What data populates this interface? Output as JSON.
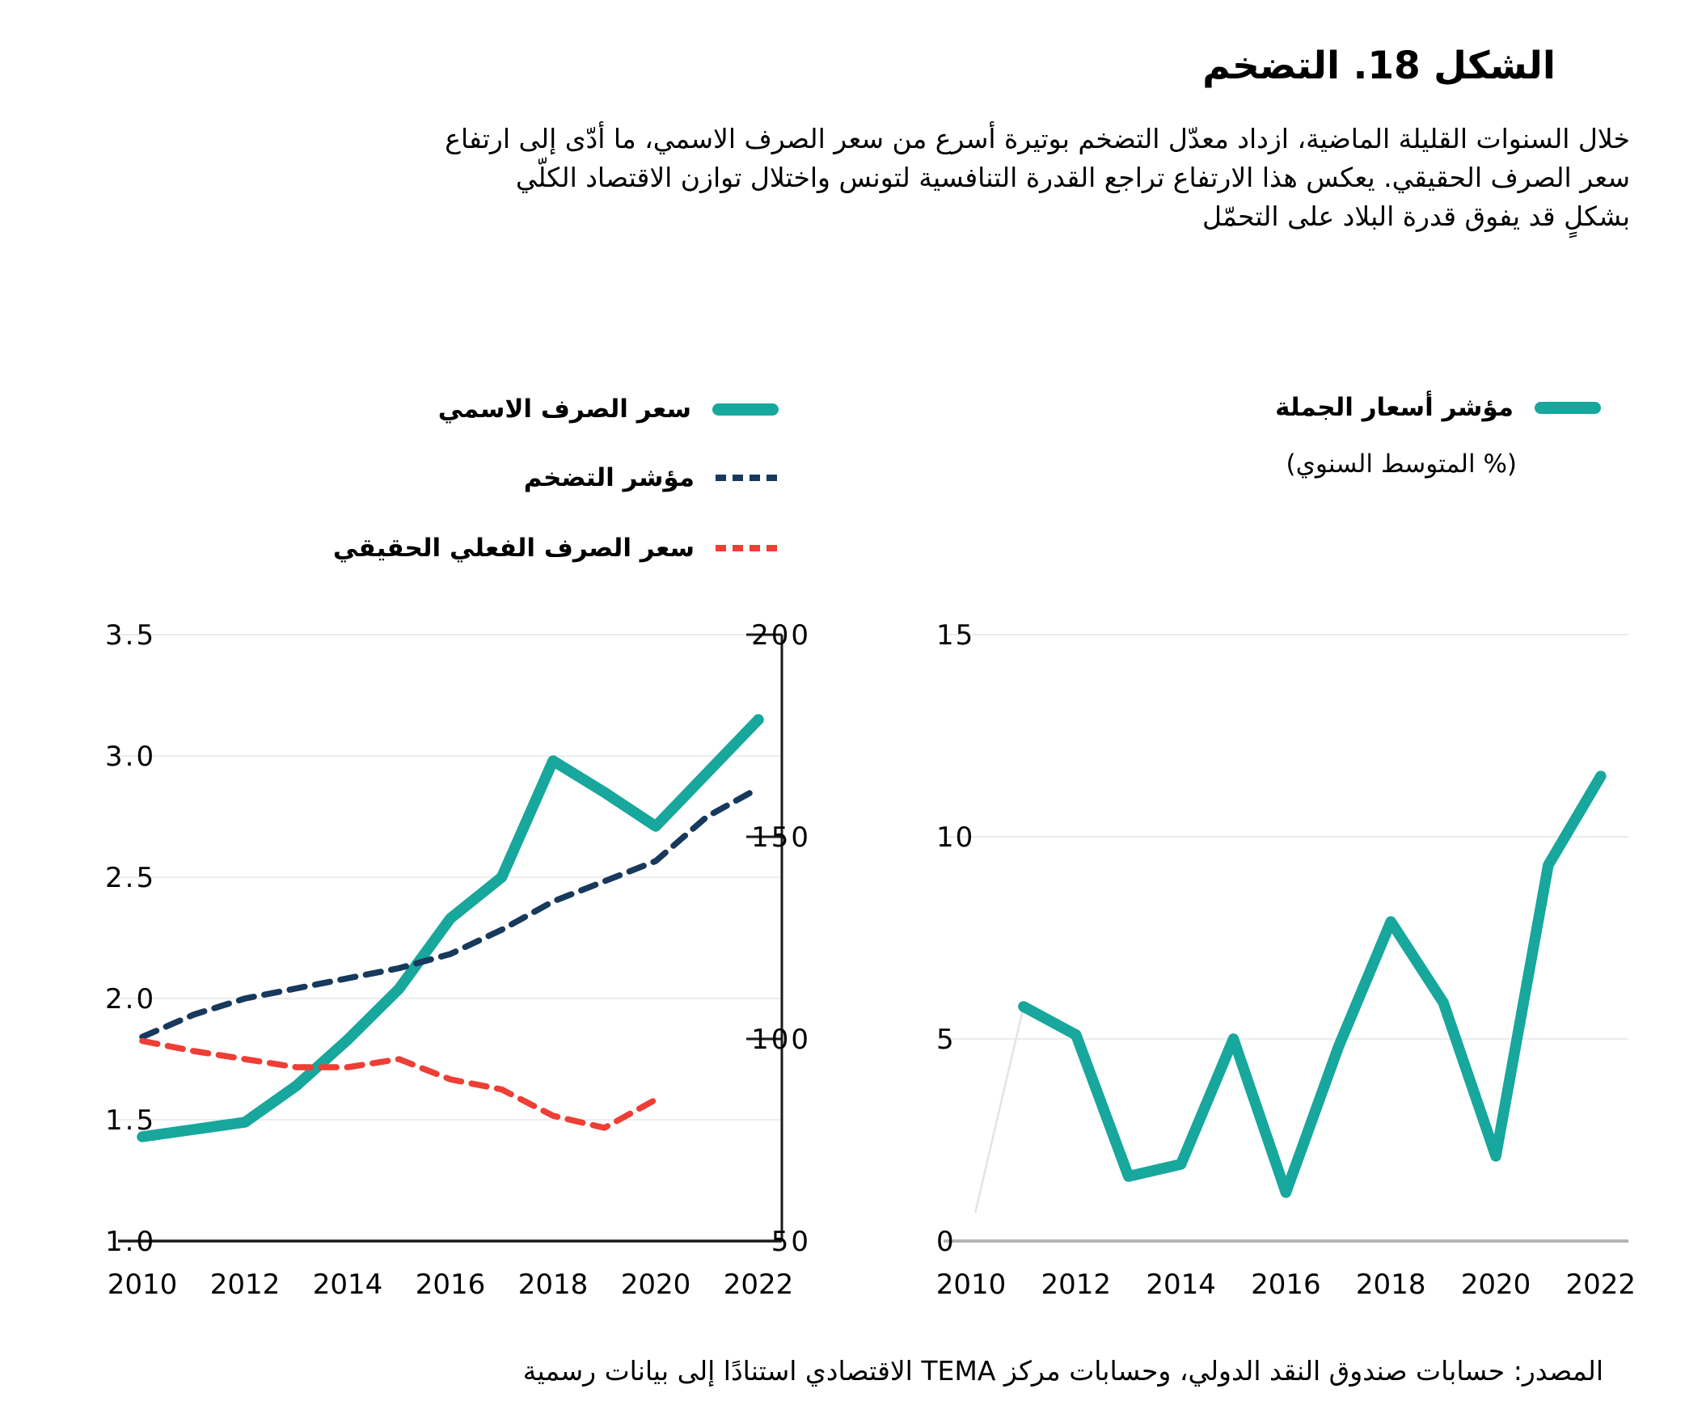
{
  "title": "الشكل 18. التضخم",
  "paragraph": {
    "lines": [
      "خلال السنوات القليلة الماضية، ازداد معدّل التضخم بوتيرة أسرع من سعر الصرف الاسمي، ما أدّى إلى ارتفاع",
      "سعر الصرف الحقيقي. يعكس هذا الارتفاع تراجع القدرة التنافسية لتونس واختلال توازن الاقتصاد الكلّي",
      "بشكلٍ قد يفوق قدرة البلاد على التحمّل"
    ]
  },
  "legend_left": {
    "items": [
      {
        "label": "سعر الصرف الاسمي",
        "style": "solid",
        "color": "#17a79c"
      },
      {
        "label": "مؤشر التضخم",
        "style": "dashed",
        "color": "#16395c"
      },
      {
        "label": "سعر الصرف الفعلي الحقيقي",
        "style": "dashed",
        "color": "#ee3e35"
      }
    ]
  },
  "legend_right": {
    "label": "مؤشر أسعار الجملة",
    "subtitle": "(% المتوسط السنوي)",
    "color": "#17a79c"
  },
  "source": "المصدر: حسابات صندوق النقد الدولي،  وحسابات مركز TEMA الاقتصادي استنادًا إلى بيانات رسمية",
  "colors": {
    "accent_teal": "#17a79c",
    "navy": "#16395c",
    "red": "#ee3e35",
    "grid": "#ececec",
    "axis": "#1a1a1a",
    "zero_axis": "#b5b5b5",
    "faint_line": "#e3e3e3",
    "text": "#000000"
  },
  "chart_data": [
    {
      "type": "line",
      "title": "",
      "x": [
        2010,
        2011,
        2012,
        2013,
        2014,
        2015,
        2016,
        2017,
        2018,
        2019,
        2020,
        2021,
        2022
      ],
      "x_tick_labels": [
        2010,
        2012,
        2014,
        2016,
        2018,
        2020,
        2022
      ],
      "ylim_left": [
        1.0,
        3.5
      ],
      "yticks_left": [
        1.0,
        1.5,
        2.0,
        2.5,
        3.0,
        3.5
      ],
      "ylim_right": [
        50,
        200
      ],
      "yticks_right": [
        50,
        100,
        150,
        200
      ],
      "grid": true,
      "legend_position": "above",
      "series": [
        {
          "name": "سعر الصرف الاسمي",
          "axis": "left",
          "style": "solid",
          "color": "#17a79c",
          "values": [
            1.43,
            1.46,
            1.49,
            1.64,
            1.83,
            2.04,
            2.33,
            2.5,
            2.98,
            2.85,
            2.71,
            2.93,
            3.15
          ]
        },
        {
          "name": "مؤشر التضخم",
          "axis": "right",
          "style": "dashed",
          "color": "#16395c",
          "values": [
            100.5,
            106,
            110,
            112.5,
            115,
            117.5,
            121,
            127,
            134,
            139,
            144,
            155,
            162
          ]
        },
        {
          "name": "سعر الصرف الفعلي الحقيقي",
          "axis": "right",
          "style": "dashed",
          "color": "#ee3e35",
          "values": [
            99.5,
            97,
            95,
            93,
            93,
            95,
            90,
            87.5,
            81,
            78,
            85,
            null,
            null
          ]
        }
      ]
    },
    {
      "type": "line",
      "title": "مؤشر أسعار الجملة",
      "subtitle": "(% المتوسط السنوي)",
      "x": [
        2010,
        2011,
        2012,
        2013,
        2014,
        2015,
        2016,
        2017,
        2018,
        2019,
        2020,
        2021,
        2022
      ],
      "x_tick_labels": [
        2010,
        2012,
        2014,
        2016,
        2018,
        2020,
        2022
      ],
      "ylim": [
        0,
        15
      ],
      "yticks": [
        0,
        5,
        10,
        15
      ],
      "grid": true,
      "series": [
        {
          "name": "مؤشر أسعار الجملة",
          "style": "solid",
          "color": "#17a79c",
          "values": [
            null,
            5.8,
            5.1,
            1.6,
            1.9,
            5.0,
            1.2,
            4.8,
            7.9,
            5.9,
            2.1,
            9.3,
            11.5
          ]
        }
      ],
      "faint_segment": {
        "x": [
          2010.08,
          2011
        ],
        "y": [
          0.7,
          5.8
        ]
      }
    }
  ]
}
